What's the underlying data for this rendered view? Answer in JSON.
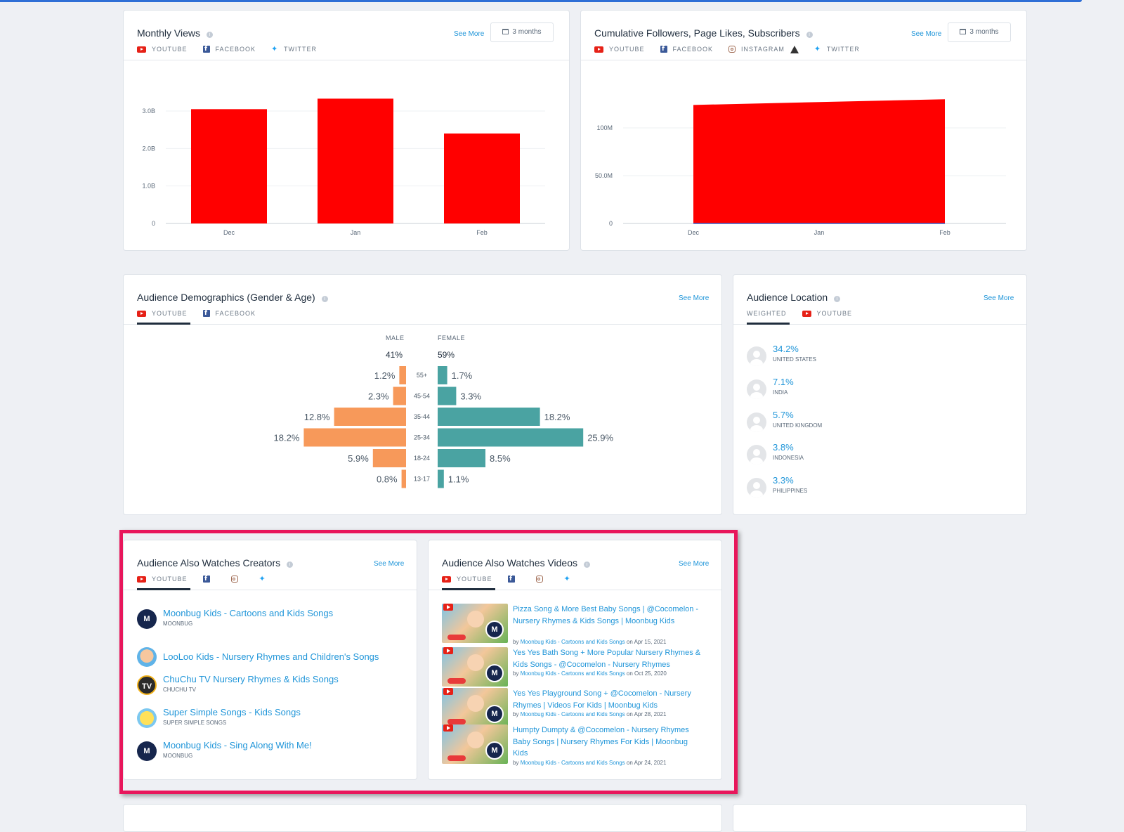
{
  "colors": {
    "bar": "#ff0000",
    "male": "#f7995a",
    "female": "#4aa3a2",
    "link": "#2196d9",
    "highlight": "#e8165b"
  },
  "monthly_views": {
    "title": "Monthly Views",
    "see_more": "See More",
    "range": "3 months",
    "tabs": [
      {
        "icon": "youtube-icon",
        "label": "YOUTUBE"
      },
      {
        "icon": "facebook-icon",
        "label": "FACEBOOK"
      },
      {
        "icon": "twitter-icon",
        "label": "TWITTER"
      }
    ]
  },
  "cumulative": {
    "title": "Cumulative Followers, Page Likes, Subscribers",
    "see_more": "See More",
    "range": "3 months",
    "tabs": [
      {
        "icon": "youtube-icon",
        "label": "YOUTUBE"
      },
      {
        "icon": "facebook-icon",
        "label": "FACEBOOK"
      },
      {
        "icon": "instagram-icon",
        "label": "INSTAGRAM"
      },
      {
        "icon": "twitter-icon",
        "label": "TWITTER"
      }
    ]
  },
  "chart_data": [
    {
      "type": "bar",
      "categories": [
        "Dec",
        "Jan",
        "Feb"
      ],
      "values": [
        3.05,
        3.33,
        2.4
      ],
      "yticks": [
        "0",
        "1.0B",
        "2.0B",
        "3.0B"
      ],
      "ytick_values": [
        0,
        1,
        2,
        3
      ],
      "ylim": [
        0,
        3.4
      ],
      "unit": "B"
    },
    {
      "type": "area",
      "categories": [
        "Dec",
        "Jan",
        "Feb"
      ],
      "values": [
        124,
        127,
        130
      ],
      "yticks": [
        "0",
        "50.0M",
        "100M"
      ],
      "ytick_values": [
        0,
        50,
        100
      ],
      "ylim": [
        0,
        150
      ],
      "unit": "M"
    }
  ],
  "demographics": {
    "title": "Audience Demographics (Gender & Age)",
    "see_more": "See More",
    "tabs": [
      {
        "icon": "youtube-icon",
        "label": "YOUTUBE"
      },
      {
        "icon": "facebook-icon",
        "label": "FACEBOOK"
      }
    ],
    "male_label": "MALE",
    "female_label": "FEMALE",
    "male_total": "41%",
    "female_total": "59%",
    "rows": [
      {
        "age": "55+",
        "male": 1.2,
        "female": 1.7,
        "male_label": "1.2%",
        "female_label": "1.7%"
      },
      {
        "age": "45-54",
        "male": 2.3,
        "female": 3.3,
        "male_label": "2.3%",
        "female_label": "3.3%"
      },
      {
        "age": "35-44",
        "male": 12.8,
        "female": 18.2,
        "male_label": "12.8%",
        "female_label": "18.2%"
      },
      {
        "age": "25-34",
        "male": 18.2,
        "female": 25.9,
        "male_label": "18.2%",
        "female_label": "25.9%"
      },
      {
        "age": "18-24",
        "male": 5.9,
        "female": 8.5,
        "male_label": "5.9%",
        "female_label": "8.5%"
      },
      {
        "age": "13-17",
        "male": 0.8,
        "female": 1.1,
        "male_label": "0.8%",
        "female_label": "1.1%"
      }
    ]
  },
  "location": {
    "title": "Audience Location",
    "see_more": "See More",
    "tabs": [
      {
        "label": "WEIGHTED"
      },
      {
        "icon": "youtube-icon",
        "label": "YOUTUBE"
      }
    ],
    "items": [
      {
        "pct": "34.2%",
        "country": "UNITED STATES"
      },
      {
        "pct": "7.1%",
        "country": "INDIA"
      },
      {
        "pct": "5.7%",
        "country": "UNITED KINGDOM"
      },
      {
        "pct": "3.8%",
        "country": "INDONESIA"
      },
      {
        "pct": "3.3%",
        "country": "PHILIPPINES"
      }
    ]
  },
  "creators": {
    "title": "Audience Also Watches Creators",
    "see_more": "See More",
    "tab_label": "YOUTUBE",
    "items": [
      {
        "name": "Moonbug Kids - Cartoons and Kids Songs",
        "sub": "MOONBUG",
        "avatar": "M"
      },
      {
        "name": "LooLoo Kids - Nursery Rhymes and Children's Songs",
        "sub": "",
        "avatar": ""
      },
      {
        "name": "ChuChu TV Nursery Rhymes & Kids Songs",
        "sub": "CHUCHU TV",
        "avatar": "TV"
      },
      {
        "name": "Super Simple Songs - Kids Songs",
        "sub": "SUPER SIMPLE SONGS",
        "avatar": ""
      },
      {
        "name": "Moonbug Kids - Sing Along With Me!",
        "sub": "MOONBUG",
        "avatar": "M"
      }
    ]
  },
  "videos": {
    "title": "Audience Also Watches Videos",
    "see_more": "See More",
    "tab_label": "YOUTUBE",
    "by": "by",
    "on": "on",
    "items": [
      {
        "title": "Pizza Song & More Best Baby Songs | @Cocomelon - Nursery Rhymes & Kids Songs | Moonbug Kids",
        "channel": "Moonbug Kids - Cartoons and Kids Songs",
        "date": "Apr 15, 2021"
      },
      {
        "title": "Yes Yes Bath Song + More Popular Nursery Rhymes & Kids Songs - @Cocomelon - Nursery Rhymes",
        "channel": "Moonbug Kids - Cartoons and Kids Songs",
        "date": "Oct 25, 2020"
      },
      {
        "title": "Yes Yes Playground Song + @Cocomelon - Nursery Rhymes | Videos For Kids | Moonbug Kids",
        "channel": "Moonbug Kids - Cartoons and Kids Songs",
        "date": "Apr 28, 2021"
      },
      {
        "title": "Humpty Dumpty & @Cocomelon - Nursery Rhymes Baby Songs | Nursery Rhymes For Kids | Moonbug Kids",
        "channel": "Moonbug Kids - Cartoons and Kids Songs",
        "date": "Apr 24, 2021"
      }
    ]
  }
}
